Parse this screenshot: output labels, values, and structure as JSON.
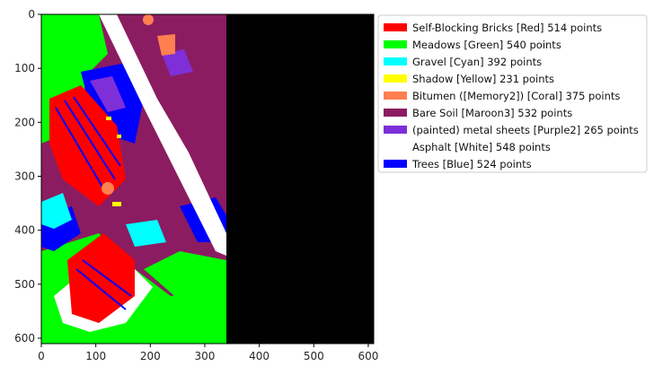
{
  "chart_data": {
    "type": "heatmap",
    "title": "",
    "xlabel": "",
    "ylabel": "",
    "xlim": [
      0,
      610
    ],
    "ylim": [
      610,
      0
    ],
    "image_data_extent_x": [
      0,
      340
    ],
    "background": "#000000",
    "x_ticks": [
      0,
      100,
      200,
      300,
      400,
      500,
      600
    ],
    "y_ticks": [
      0,
      100,
      200,
      300,
      400,
      500,
      600
    ],
    "legend_position": "outside-right",
    "classes": [
      {
        "name": "Self-Blocking Bricks [Red] 514 points",
        "color": "#ff0000",
        "points": 514
      },
      {
        "name": "Meadows [Green] 540 points",
        "color": "#00ff00",
        "points": 540
      },
      {
        "name": "Gravel [Cyan] 392 points",
        "color": "#00ffff",
        "points": 392
      },
      {
        "name": "Shadow [Yellow] 231 points",
        "color": "#ffff00",
        "points": 231
      },
      {
        "name": "Bitumen ([Memory2]) [Coral] 375 points",
        "color": "#ff7f50",
        "points": 375
      },
      {
        "name": "Bare Soil [Maroon3] 532 points",
        "color": "#8b1c62",
        "points": 532
      },
      {
        "name": "(painted) metal sheets [Purple2] 265 points",
        "color": "#7e2fd8",
        "points": 265
      },
      {
        "name": "Asphalt [White] 548 points",
        "color": "#ffffff",
        "points": 548
      },
      {
        "name": "Trees [Blue] 524 points",
        "color": "#0000ff",
        "points": 524
      }
    ]
  }
}
